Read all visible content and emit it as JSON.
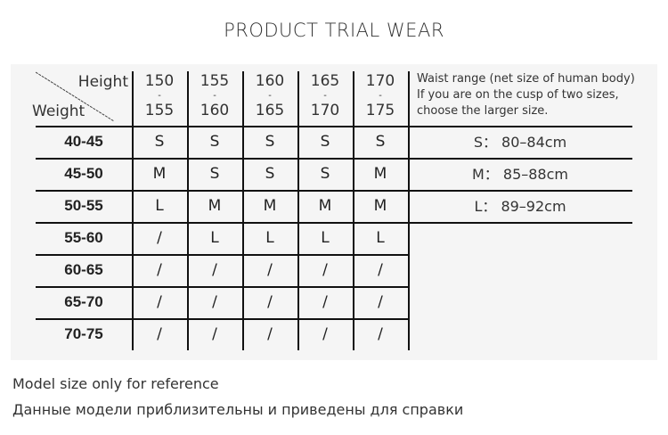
{
  "title": "PRODUCT TRIAL WEAR",
  "corner": {
    "height_label": "Height",
    "weight_label": "Weight"
  },
  "heights": [
    {
      "from": "150",
      "to": "155"
    },
    {
      "from": "155",
      "to": "160"
    },
    {
      "from": "160",
      "to": "165"
    },
    {
      "from": "165",
      "to": "170"
    },
    {
      "from": "170",
      "to": "175"
    }
  ],
  "range_sep": "-",
  "rows": [
    {
      "weight": "40-45",
      "sizes": [
        "S",
        "S",
        "S",
        "S",
        "S"
      ]
    },
    {
      "weight": "45-50",
      "sizes": [
        "M",
        "S",
        "S",
        "S",
        "M"
      ]
    },
    {
      "weight": "50-55",
      "sizes": [
        "L",
        "M",
        "M",
        "M",
        "M"
      ]
    },
    {
      "weight": "55-60",
      "sizes": [
        "/",
        "L",
        "L",
        "L",
        "L"
      ]
    },
    {
      "weight": "60-65",
      "sizes": [
        "/",
        "/",
        "/",
        "/",
        "/"
      ]
    },
    {
      "weight": "65-70",
      "sizes": [
        "/",
        "/",
        "/",
        "/",
        "/"
      ]
    },
    {
      "weight": "70-75",
      "sizes": [
        "/",
        "/",
        "/",
        "/",
        "/"
      ]
    }
  ],
  "waist": {
    "note": [
      "Waist range (net size of human body)",
      "If you are on the cusp of two sizes,",
      "choose the larger size."
    ],
    "sizes": [
      "S： 80–84cm",
      "M： 85–88cm",
      "L： 89–92cm"
    ]
  },
  "footer": [
    "Model size only for reference",
    "Данные модели приблизительны и приведены для справки"
  ]
}
